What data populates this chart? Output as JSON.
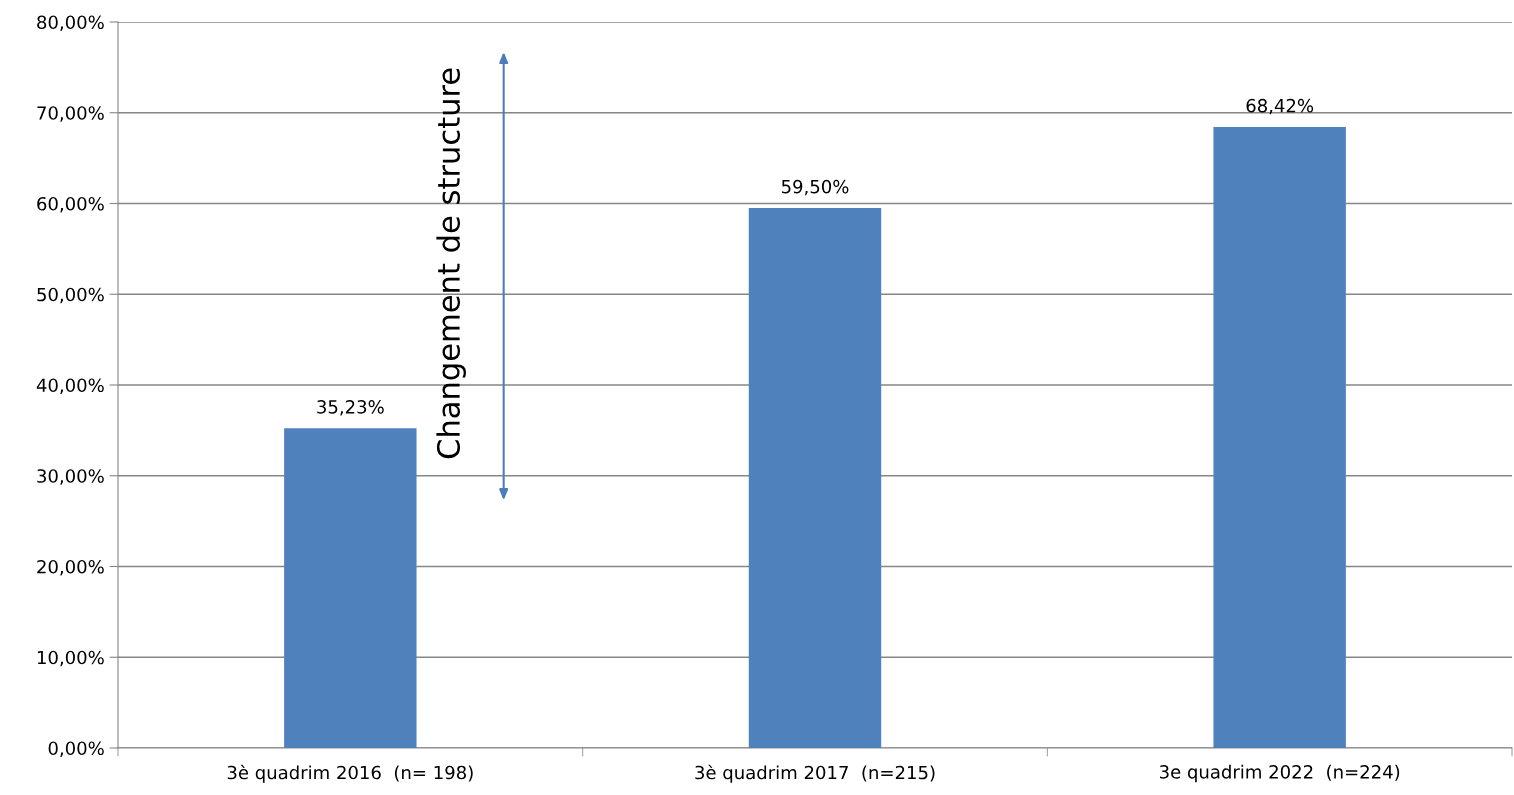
{
  "chart_data": {
    "type": "bar",
    "categories": [
      "3è quadrim 2016  (n= 198)",
      "3è quadrim 2017  (n=215)",
      "3e quadrim 2022  (n=224)"
    ],
    "values": [
      35.23,
      59.5,
      68.42
    ],
    "color": "#4f81bd",
    "value_labels": [
      "35,23%",
      "59,50%",
      "68,42%"
    ],
    "ylim": [
      0,
      80
    ],
    "yticks": [
      {
        "value": 0,
        "label": "0,00%"
      },
      {
        "value": 10,
        "label": "10,00%"
      },
      {
        "value": 20,
        "label": "20,00%"
      },
      {
        "value": 30,
        "label": "30,00%"
      },
      {
        "value": 40,
        "label": "40,00%"
      },
      {
        "value": 50,
        "label": "50,00%"
      },
      {
        "value": 60,
        "label": "60,00%"
      },
      {
        "value": 70,
        "label": "70,00%"
      },
      {
        "value": 80,
        "label": "80,00%"
      }
    ],
    "grid": "y",
    "legend": false,
    "annotations": [
      "Changement de structure"
    ]
  }
}
